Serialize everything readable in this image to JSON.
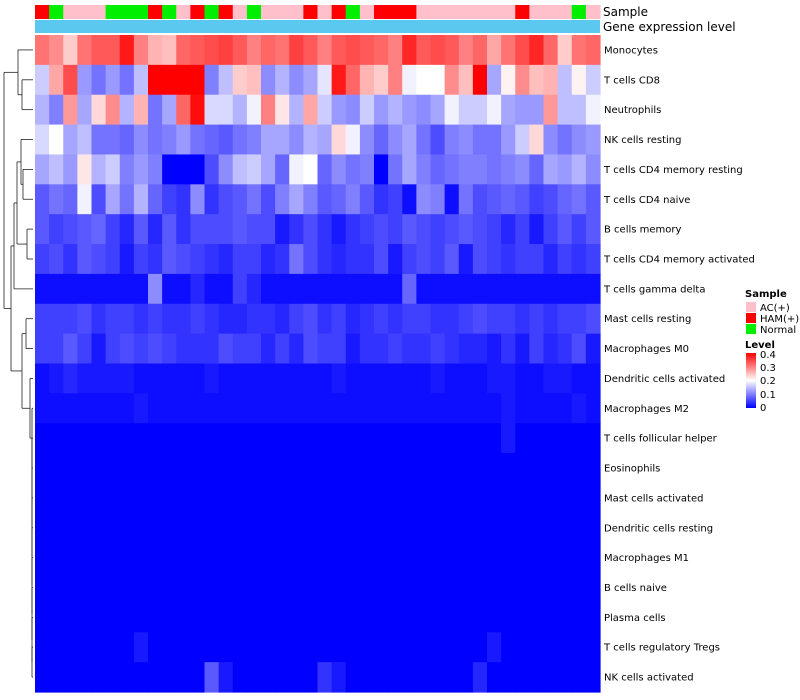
{
  "chart_data": {
    "type": "heatmap",
    "column_count": 40,
    "rows": [
      "Monocytes",
      "T cells CD8",
      "Neutrophils",
      "NK cells resting",
      "T cells CD4 memory resting",
      "T cells CD4 naive",
      "B cells memory",
      "T cells CD4 memory activated",
      "T cells gamma delta",
      "Mast cells resting",
      "Macrophages M0",
      "Dendritic cells activated",
      "Macrophages M2",
      "T cells follicular helper",
      "Eosinophils",
      "Mast cells activated",
      "Dendritic cells resting",
      "Macrophages M1",
      "B cells naive",
      "Plasma cells",
      "T cells regulatory  Tregs",
      "NK cells activated"
    ],
    "sample_annotation": {
      "title": "Sample",
      "values": [
        "HAM(+)",
        "Normal",
        "AC(+)",
        "AC(+)",
        "AC(+)",
        "Normal",
        "Normal",
        "Normal",
        "HAM(+)",
        "Normal",
        "AC(+)",
        "HAM(+)",
        "Normal",
        "HAM(+)",
        "AC(+)",
        "Normal",
        "AC(+)",
        "AC(+)",
        "AC(+)",
        "HAM(+)",
        "AC(+)",
        "HAM(+)",
        "Normal",
        "AC(+)",
        "HAM(+)",
        "HAM(+)",
        "HAM(+)",
        "AC(+)",
        "AC(+)",
        "AC(+)",
        "AC(+)",
        "AC(+)",
        "AC(+)",
        "AC(+)",
        "HAM(+)",
        "AC(+)",
        "AC(+)",
        "AC(+)",
        "Normal",
        "AC(+)"
      ]
    },
    "expression_annotation": {
      "title": "Gene expression level"
    },
    "legend": {
      "sample_title": "Sample",
      "sample_entries": [
        {
          "label": "AC(+)",
          "color": "#FFC0CB"
        },
        {
          "label": "HAM(+)",
          "color": "#FF0000"
        },
        {
          "label": "Normal",
          "color": "#00EE00"
        }
      ],
      "level_title": "Level",
      "level_ticks": [
        "0.4",
        "0.3",
        "0.2",
        "0.1",
        "0"
      ],
      "color_low": "#0000FF",
      "color_mid": "#FFFFFF",
      "color_high": "#FF0000",
      "scale_min": 0,
      "scale_max": 0.4,
      "scale_mid": 0.2
    },
    "expression_bar_color": "#5BC8F0",
    "values": [
      [
        0.31,
        0.29,
        0.24,
        0.31,
        0.33,
        0.33,
        0.38,
        0.3,
        0.26,
        0.25,
        0.32,
        0.33,
        0.34,
        0.35,
        0.33,
        0.3,
        0.32,
        0.31,
        0.35,
        0.33,
        0.3,
        0.33,
        0.34,
        0.33,
        0.32,
        0.3,
        0.37,
        0.33,
        0.34,
        0.33,
        0.3,
        0.32,
        0.27,
        0.31,
        0.34,
        0.37,
        0.32,
        0.24,
        0.31,
        0.32
      ],
      [
        0.16,
        0.27,
        0.34,
        0.12,
        0.09,
        0.12,
        0.09,
        0.15,
        0.4,
        0.4,
        0.4,
        0.4,
        0.1,
        0.15,
        0.24,
        0.25,
        0.11,
        0.14,
        0.11,
        0.13,
        0.18,
        0.38,
        0.32,
        0.26,
        0.24,
        0.3,
        0.19,
        0.2,
        0.2,
        0.29,
        0.25,
        0.4,
        0.13,
        0.21,
        0.29,
        0.25,
        0.26,
        0.15,
        0.21,
        0.16
      ],
      [
        0.14,
        0.1,
        0.28,
        0.13,
        0.23,
        0.29,
        0.14,
        0.26,
        0.09,
        0.13,
        0.32,
        0.39,
        0.17,
        0.17,
        0.14,
        0.19,
        0.3,
        0.22,
        0.14,
        0.27,
        0.16,
        0.12,
        0.11,
        0.16,
        0.12,
        0.14,
        0.12,
        0.11,
        0.13,
        0.19,
        0.16,
        0.16,
        0.19,
        0.13,
        0.12,
        0.12,
        0.28,
        0.15,
        0.15,
        0.19
      ],
      [
        0.17,
        0.2,
        0.13,
        0.15,
        0.09,
        0.09,
        0.08,
        0.11,
        0.09,
        0.1,
        0.12,
        0.09,
        0.08,
        0.07,
        0.09,
        0.1,
        0.13,
        0.13,
        0.11,
        0.14,
        0.13,
        0.23,
        0.19,
        0.11,
        0.08,
        0.11,
        0.13,
        0.09,
        0.06,
        0.1,
        0.11,
        0.09,
        0.09,
        0.12,
        0.16,
        0.23,
        0.11,
        0.09,
        0.11,
        0.12
      ],
      [
        0.13,
        0.15,
        0.12,
        0.22,
        0.14,
        0.16,
        0.1,
        0.12,
        0.1,
        0.0,
        0.0,
        0.0,
        0.06,
        0.11,
        0.15,
        0.16,
        0.13,
        0.08,
        0.19,
        0.2,
        0.08,
        0.11,
        0.09,
        0.1,
        0.0,
        0.09,
        0.13,
        0.1,
        0.08,
        0.09,
        0.1,
        0.1,
        0.09,
        0.1,
        0.11,
        0.08,
        0.13,
        0.12,
        0.14,
        0.11
      ],
      [
        0.07,
        0.09,
        0.08,
        0.19,
        0.06,
        0.13,
        0.09,
        0.14,
        0.08,
        0.05,
        0.04,
        0.11,
        0.04,
        0.06,
        0.07,
        0.09,
        0.06,
        0.1,
        0.13,
        0.1,
        0.07,
        0.08,
        0.1,
        0.07,
        0.04,
        0.05,
        0.01,
        0.11,
        0.1,
        0.01,
        0.09,
        0.06,
        0.07,
        0.08,
        0.07,
        0.05,
        0.06,
        0.08,
        0.09,
        0.07
      ],
      [
        0.07,
        0.05,
        0.06,
        0.07,
        0.08,
        0.05,
        0.03,
        0.07,
        0.03,
        0.07,
        0.04,
        0.06,
        0.06,
        0.06,
        0.07,
        0.06,
        0.06,
        0.02,
        0.04,
        0.06,
        0.04,
        0.02,
        0.04,
        0.05,
        0.06,
        0.05,
        0.07,
        0.06,
        0.05,
        0.06,
        0.07,
        0.06,
        0.05,
        0.03,
        0.05,
        0.02,
        0.05,
        0.07,
        0.05,
        0.07
      ],
      [
        0.05,
        0.06,
        0.04,
        0.07,
        0.06,
        0.05,
        0.02,
        0.05,
        0.04,
        0.07,
        0.06,
        0.05,
        0.04,
        0.03,
        0.05,
        0.05,
        0.03,
        0.04,
        0.09,
        0.06,
        0.04,
        0.03,
        0.04,
        0.04,
        0.06,
        0.02,
        0.05,
        0.06,
        0.05,
        0.07,
        0.02,
        0.06,
        0.05,
        0.04,
        0.05,
        0.05,
        0.03,
        0.05,
        0.04,
        0.05
      ],
      [
        0.01,
        0.01,
        0.01,
        0.01,
        0.01,
        0.01,
        0.01,
        0.01,
        0.11,
        0.01,
        0.01,
        0.03,
        0.01,
        0.01,
        0.05,
        0.03,
        0.01,
        0.01,
        0.01,
        0.01,
        0.01,
        0.01,
        0.01,
        0.01,
        0.01,
        0.01,
        0.08,
        0.01,
        0.01,
        0.01,
        0.01,
        0.01,
        0.01,
        0.01,
        0.01,
        0.01,
        0.01,
        0.01,
        0.01,
        0.01
      ],
      [
        0.05,
        0.05,
        0.05,
        0.06,
        0.04,
        0.05,
        0.05,
        0.04,
        0.05,
        0.04,
        0.04,
        0.05,
        0.04,
        0.03,
        0.03,
        0.04,
        0.04,
        0.03,
        0.05,
        0.06,
        0.04,
        0.05,
        0.03,
        0.04,
        0.05,
        0.04,
        0.05,
        0.05,
        0.04,
        0.04,
        0.05,
        0.06,
        0.05,
        0.05,
        0.04,
        0.05,
        0.04,
        0.05,
        0.05,
        0.06
      ],
      [
        0.05,
        0.05,
        0.07,
        0.05,
        0.02,
        0.05,
        0.06,
        0.05,
        0.06,
        0.05,
        0.04,
        0.04,
        0.04,
        0.06,
        0.05,
        0.05,
        0.03,
        0.05,
        0.03,
        0.06,
        0.05,
        0.05,
        0.02,
        0.04,
        0.04,
        0.05,
        0.04,
        0.04,
        0.05,
        0.04,
        0.03,
        0.03,
        0.02,
        0.04,
        0.02,
        0.05,
        0.03,
        0.04,
        0.06,
        0.02
      ],
      [
        0.01,
        0.02,
        0.03,
        0.02,
        0.02,
        0.02,
        0.02,
        0.01,
        0.01,
        0.01,
        0.01,
        0.01,
        0.02,
        0.01,
        0.01,
        0.01,
        0.01,
        0.01,
        0.01,
        0.01,
        0.01,
        0.02,
        0.01,
        0.01,
        0.01,
        0.01,
        0.01,
        0.01,
        0.02,
        0.01,
        0.01,
        0.01,
        0.02,
        0.02,
        0.01,
        0.01,
        0.02,
        0.02,
        0.01,
        0.01
      ],
      [
        0.01,
        0.01,
        0.01,
        0.01,
        0.01,
        0.01,
        0.01,
        0.02,
        0.01,
        0.01,
        0.01,
        0.01,
        0.01,
        0.01,
        0.01,
        0.01,
        0.01,
        0.01,
        0.01,
        0.01,
        0.01,
        0.01,
        0.01,
        0.01,
        0.01,
        0.01,
        0.01,
        0.01,
        0.01,
        0.01,
        0.01,
        0.01,
        0.01,
        0.02,
        0.01,
        0.01,
        0.01,
        0.01,
        0.02,
        0.01
      ],
      [
        0.0,
        0.0,
        0.0,
        0.0,
        0.0,
        0.0,
        0.0,
        0.0,
        0.0,
        0.0,
        0.0,
        0.0,
        0.0,
        0.0,
        0.0,
        0.0,
        0.0,
        0.0,
        0.0,
        0.0,
        0.0,
        0.0,
        0.0,
        0.0,
        0.0,
        0.0,
        0.0,
        0.0,
        0.0,
        0.0,
        0.0,
        0.0,
        0.0,
        0.02,
        0.0,
        0.0,
        0.0,
        0.0,
        0.0,
        0.0
      ],
      [
        0.0,
        0.0,
        0.0,
        0.0,
        0.0,
        0.0,
        0.0,
        0.0,
        0.0,
        0.0,
        0.0,
        0.0,
        0.0,
        0.0,
        0.0,
        0.0,
        0.0,
        0.0,
        0.0,
        0.0,
        0.0,
        0.0,
        0.0,
        0.0,
        0.0,
        0.0,
        0.0,
        0.0,
        0.0,
        0.0,
        0.0,
        0.0,
        0.0,
        0.0,
        0.0,
        0.0,
        0.0,
        0.0,
        0.0,
        0.0
      ],
      [
        0.0,
        0.0,
        0.0,
        0.0,
        0.0,
        0.0,
        0.0,
        0.0,
        0.0,
        0.0,
        0.0,
        0.0,
        0.0,
        0.0,
        0.0,
        0.0,
        0.0,
        0.0,
        0.0,
        0.0,
        0.0,
        0.0,
        0.0,
        0.0,
        0.0,
        0.0,
        0.0,
        0.0,
        0.0,
        0.0,
        0.0,
        0.0,
        0.0,
        0.0,
        0.0,
        0.0,
        0.0,
        0.0,
        0.0,
        0.0
      ],
      [
        0.0,
        0.0,
        0.0,
        0.0,
        0.0,
        0.0,
        0.0,
        0.0,
        0.0,
        0.0,
        0.0,
        0.0,
        0.0,
        0.0,
        0.0,
        0.0,
        0.0,
        0.0,
        0.0,
        0.0,
        0.0,
        0.0,
        0.0,
        0.0,
        0.0,
        0.0,
        0.0,
        0.0,
        0.0,
        0.0,
        0.0,
        0.0,
        0.0,
        0.0,
        0.0,
        0.0,
        0.0,
        0.0,
        0.0,
        0.0
      ],
      [
        0.0,
        0.0,
        0.0,
        0.0,
        0.0,
        0.0,
        0.0,
        0.0,
        0.0,
        0.0,
        0.0,
        0.0,
        0.0,
        0.0,
        0.0,
        0.0,
        0.0,
        0.0,
        0.0,
        0.0,
        0.0,
        0.0,
        0.0,
        0.0,
        0.0,
        0.0,
        0.0,
        0.0,
        0.0,
        0.0,
        0.0,
        0.0,
        0.0,
        0.0,
        0.0,
        0.0,
        0.0,
        0.0,
        0.0,
        0.0
      ],
      [
        0.0,
        0.0,
        0.0,
        0.0,
        0.0,
        0.0,
        0.0,
        0.0,
        0.0,
        0.0,
        0.0,
        0.0,
        0.0,
        0.0,
        0.0,
        0.0,
        0.0,
        0.0,
        0.0,
        0.0,
        0.0,
        0.0,
        0.0,
        0.0,
        0.0,
        0.0,
        0.0,
        0.0,
        0.0,
        0.0,
        0.0,
        0.0,
        0.0,
        0.0,
        0.0,
        0.0,
        0.0,
        0.0,
        0.0,
        0.0
      ],
      [
        0.0,
        0.0,
        0.0,
        0.0,
        0.0,
        0.0,
        0.0,
        0.0,
        0.0,
        0.0,
        0.0,
        0.0,
        0.0,
        0.0,
        0.0,
        0.0,
        0.0,
        0.0,
        0.0,
        0.0,
        0.0,
        0.0,
        0.0,
        0.0,
        0.0,
        0.0,
        0.0,
        0.0,
        0.0,
        0.0,
        0.0,
        0.0,
        0.0,
        0.0,
        0.0,
        0.0,
        0.0,
        0.0,
        0.0,
        0.0
      ],
      [
        0.0,
        0.0,
        0.0,
        0.0,
        0.0,
        0.0,
        0.0,
        0.02,
        0.0,
        0.0,
        0.0,
        0.0,
        0.0,
        0.0,
        0.0,
        0.0,
        0.0,
        0.0,
        0.0,
        0.0,
        0.0,
        0.0,
        0.0,
        0.0,
        0.0,
        0.0,
        0.0,
        0.0,
        0.0,
        0.0,
        0.0,
        0.0,
        0.02,
        0.0,
        0.0,
        0.0,
        0.0,
        0.0,
        0.0,
        0.0
      ],
      [
        0.0,
        0.0,
        0.0,
        0.0,
        0.0,
        0.0,
        0.0,
        0.0,
        0.0,
        0.0,
        0.0,
        0.0,
        0.07,
        0.02,
        0.0,
        0.0,
        0.0,
        0.0,
        0.0,
        0.0,
        0.04,
        0.02,
        0.0,
        0.0,
        0.0,
        0.0,
        0.0,
        0.0,
        0.0,
        0.0,
        0.0,
        0.03,
        0.0,
        0.0,
        0.0,
        0.0,
        0.0,
        0.0,
        0.0,
        0.0
      ]
    ]
  }
}
